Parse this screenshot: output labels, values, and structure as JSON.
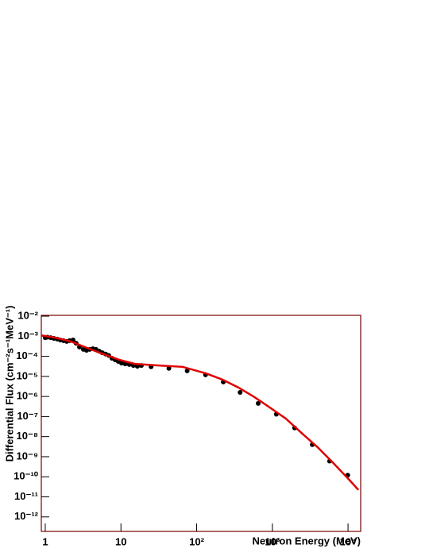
{
  "chart_data": {
    "type": "scatter",
    "x_label": "Neutron  Energy (MeV)",
    "y_label": "Differential Flux (cm⁻²s⁻¹MeV⁻¹)",
    "x_scale": "log",
    "y_scale": "log",
    "xlim": [
      0.887,
      14700
    ],
    "ylim": [
      1.9e-13,
      0.011
    ],
    "xticks": [
      1,
      10,
      {
        "value": 100,
        "label": "10²"
      },
      {
        "value": 1000,
        "label": "10³"
      },
      {
        "value": 10000,
        "label": "10⁴"
      }
    ],
    "yticks": [
      {
        "value": 1e-12,
        "label": "10⁻¹²"
      },
      {
        "value": 1e-11,
        "label": "10⁻¹¹"
      },
      {
        "value": 1e-10,
        "label": "10⁻¹⁰"
      },
      {
        "value": 1e-09,
        "label": "10⁻⁹"
      },
      {
        "value": 1e-08,
        "label": "10⁻⁸"
      },
      {
        "value": 1e-07,
        "label": "10⁻⁷"
      },
      {
        "value": 1e-06,
        "label": "10⁻⁶"
      },
      {
        "value": 1e-05,
        "label": "10⁻⁵"
      },
      {
        "value": 0.0001,
        "label": "10⁻⁴"
      },
      {
        "value": 0.001,
        "label": "10⁻³"
      },
      {
        "value": 0.01,
        "label": "10⁻²"
      }
    ],
    "frame_color": "#7a0000",
    "series": [
      {
        "style": "markers",
        "color": "#000000",
        "x": [
          1,
          1.07,
          1.18,
          1.3,
          1.44,
          1.58,
          1.74,
          1.92,
          2.1,
          2.33,
          2.56,
          2.83,
          3.19,
          3.51,
          3.87,
          4.26,
          4.69,
          5.17,
          5.69,
          6.27,
          6.9,
          7.6,
          8.4,
          9.2,
          10.2,
          11.4,
          12.9,
          14.6,
          16.5,
          18.6,
          25,
          43,
          75,
          131,
          225,
          375,
          650,
          1130,
          1970,
          3370,
          5700,
          9900
        ],
        "values": [
          0.00085,
          0.0009,
          0.00085,
          0.00078,
          0.00072,
          0.00065,
          0.0006,
          0.00055,
          0.0006,
          0.00065,
          0.00045,
          0.00029,
          0.00022,
          0.0002,
          0.00022,
          0.00024,
          0.00022,
          0.00018,
          0.00015,
          0.00013,
          0.00011,
          8e-05,
          6.7e-05,
          5.6e-05,
          4.6e-05,
          4.2e-05,
          3.9e-05,
          3.5e-05,
          3.2e-05,
          3.5e-05,
          3e-05,
          2.5e-05,
          1.9e-05,
          1.2e-05,
          5.3e-06,
          1.6e-06,
          4.5e-07,
          1.3e-07,
          2.7e-08,
          4e-09,
          6e-10,
          1.2e-10
        ]
      },
      {
        "style": "line",
        "color": "#e00000",
        "x": [
          0.89,
          1.37,
          2.2,
          3.6,
          5.8,
          9.5,
          15.3,
          31.6,
          65,
          134,
          218,
          356,
          575,
          930,
          1500,
          2440,
          3950,
          6400,
          10400,
          13700
        ],
        "values": [
          0.0011,
          0.00085,
          0.00054,
          0.00026,
          0.00013,
          6.7e-05,
          4.2e-05,
          3.5e-05,
          3e-05,
          1.4e-05,
          7e-06,
          2.8e-06,
          9.5e-07,
          2.8e-07,
          8e-08,
          1.5e-08,
          3e-09,
          4.8e-10,
          7e-11,
          2.2e-11
        ]
      }
    ]
  }
}
